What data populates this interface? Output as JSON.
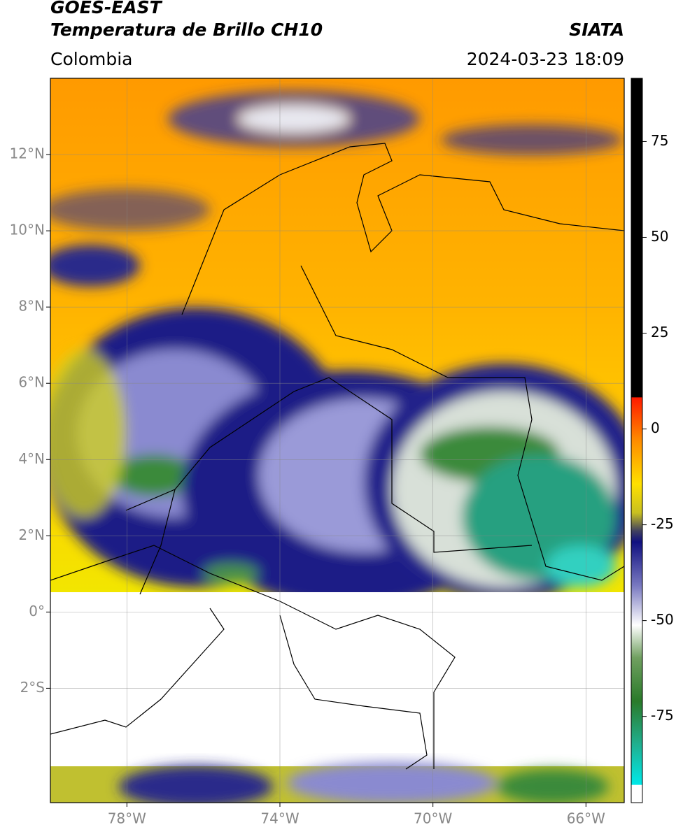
{
  "chart_data": {
    "type": "map",
    "title": "GOES-EAST",
    "subtitle": "Temperatura de Brillo CH10",
    "source": "SIATA",
    "region": "Colombia",
    "timestamp": "2024-03-23 18:09",
    "xlim": [
      -80,
      -65
    ],
    "ylim": [
      -5,
      14
    ],
    "xticks": [
      {
        "value": -78,
        "label": "78°W"
      },
      {
        "value": -74,
        "label": "74°W"
      },
      {
        "value": -70,
        "label": "70°W"
      },
      {
        "value": -66,
        "label": "66°W"
      }
    ],
    "yticks": [
      {
        "value": 12,
        "label": "12°N"
      },
      {
        "value": 10,
        "label": "10°N"
      },
      {
        "value": 8,
        "label": "8°N"
      },
      {
        "value": 6,
        "label": "6°N"
      },
      {
        "value": 4,
        "label": "4°N"
      },
      {
        "value": 2,
        "label": "2°N"
      },
      {
        "value": 0,
        "label": "0°"
      },
      {
        "value": -2,
        "label": "2°S"
      }
    ],
    "grid": true,
    "colorbar": {
      "lim": [
        -97.5,
        91.5
      ],
      "ticks": [
        75,
        50,
        25,
        0,
        -25,
        -50,
        -75
      ]
    }
  }
}
